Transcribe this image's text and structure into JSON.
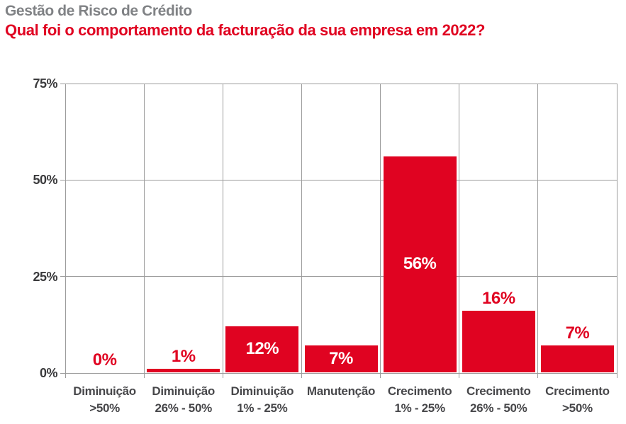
{
  "header": {
    "title": "Gestão de Risco de Crédito",
    "question": "Qual foi o comportamento da facturação da sua empresa em 2022?"
  },
  "chart_data": {
    "type": "bar",
    "title": "Gestão de Risco de Crédito",
    "subtitle": "Qual foi o comportamento da facturação da sua empresa em 2022?",
    "categories": [
      "Diminuição >50%",
      "Diminuição 26% - 50%",
      "Diminuição 1% - 25%",
      "Manutenção",
      "Crecimento 1% - 25%",
      "Crecimento 26% - 50%",
      "Crecimento >50%"
    ],
    "category_lines": [
      [
        "Diminuição",
        ">50%"
      ],
      [
        "Diminuição",
        "26% - 50%"
      ],
      [
        "Diminuição",
        "1% - 25%"
      ],
      [
        "Manutenção",
        ""
      ],
      [
        "Crecimento",
        "1% - 25%"
      ],
      [
        "Crecimento",
        "26% - 50%"
      ],
      [
        "Crecimento",
        ">50%"
      ]
    ],
    "values": [
      0,
      1,
      12,
      7,
      56,
      16,
      7
    ],
    "value_labels": [
      "0%",
      "1%",
      "12%",
      "7%",
      "56%",
      "16%",
      "7%"
    ],
    "value_label_position": [
      "outside",
      "outside",
      "inside",
      "inside",
      "inside",
      "outside",
      "outside"
    ],
    "xlabel": "",
    "ylabel": "",
    "ylim": [
      0,
      75
    ],
    "yticks": [
      {
        "value": 75,
        "label": "75%"
      },
      {
        "value": 50,
        "label": "50%"
      },
      {
        "value": 25,
        "label": "25%"
      },
      {
        "value": 0,
        "label": "0%"
      }
    ],
    "grid": true,
    "legend": false,
    "colors": {
      "bar": "#e00321",
      "value_label_inside": "#ffffff",
      "value_label_outside": "#e00321",
      "gridline": "#9c9c9c",
      "title": "#808285",
      "subtitle": "#e00321",
      "axis_text": "#3a3a3c",
      "category_text": "#47474a",
      "background": "#ffffff"
    }
  }
}
